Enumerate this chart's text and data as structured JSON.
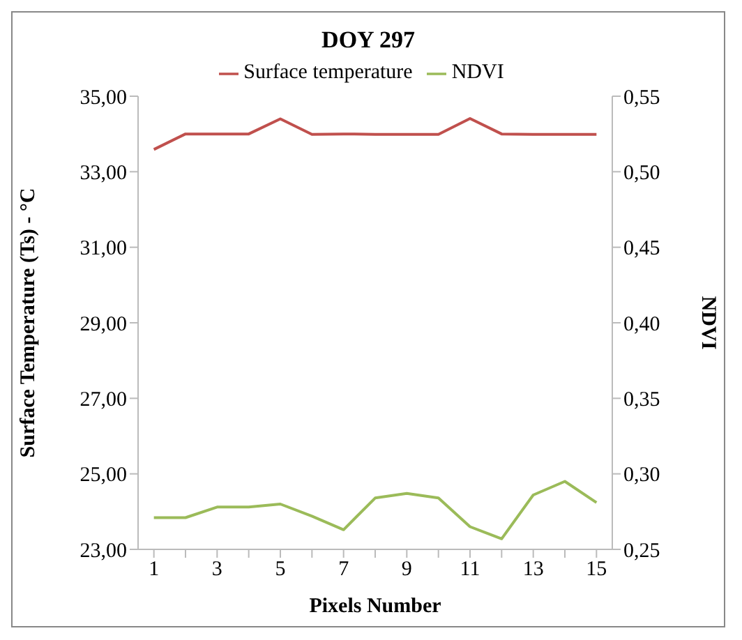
{
  "chart_data": {
    "type": "line",
    "title": "DOY 297",
    "xlabel": "Pixels Number",
    "ylabel": "Surface Temperature (Ts) - °C",
    "y2label": "NDVI",
    "x": [
      1,
      2,
      3,
      4,
      5,
      6,
      7,
      8,
      9,
      10,
      11,
      12,
      13,
      14,
      15
    ],
    "xlim": [
      0.5,
      15.5
    ],
    "xticks": [
      1,
      {
        "value": 2,
        "label": null
      },
      3,
      {
        "value": 4,
        "label": null
      },
      5,
      {
        "value": 6,
        "label": null
      },
      7,
      {
        "value": 8,
        "label": null
      },
      9,
      {
        "value": 10,
        "label": null
      },
      11,
      {
        "value": 12,
        "label": null
      },
      13,
      {
        "value": 14,
        "label": null
      },
      15
    ],
    "series": [
      {
        "name": "Surface temperature",
        "color": "#c0504d",
        "values": [
          33.59,
          34.0,
          34.0,
          34.0,
          34.4,
          33.99,
          34.0,
          33.99,
          33.99,
          33.99,
          34.41,
          34.0,
          33.99,
          33.99,
          33.99
        ]
      },
      {
        "name": "NDVI",
        "color": "#9bbb59",
        "axis": "y2",
        "values": [
          0.271,
          0.271,
          0.278,
          0.278,
          0.28,
          0.272,
          0.263,
          0.284,
          0.287,
          0.284,
          0.265,
          0.257,
          0.286,
          0.295,
          0.281
        ]
      }
    ],
    "ylim": [
      23,
      35
    ],
    "yticks": [
      {
        "value": 23,
        "label": "23,00"
      },
      {
        "value": 25,
        "label": "25,00"
      },
      {
        "value": 27,
        "label": "27,00"
      },
      {
        "value": 29,
        "label": "29,00"
      },
      {
        "value": 31,
        "label": "31,00"
      },
      {
        "value": 33,
        "label": "33,00"
      },
      {
        "value": 35,
        "label": "35,00"
      }
    ],
    "y2lim": [
      0.25,
      0.55
    ],
    "y2ticks": [
      {
        "value": 0.25,
        "label": "0,25"
      },
      {
        "value": 0.3,
        "label": "0,30"
      },
      {
        "value": 0.35,
        "label": "0,35"
      },
      {
        "value": 0.4,
        "label": "0,40"
      },
      {
        "value": 0.45,
        "label": "0,45"
      },
      {
        "value": 0.5,
        "label": "0,50"
      },
      {
        "value": 0.55,
        "label": "0,55"
      }
    ],
    "grid": false,
    "legend": "top",
    "marker": "none",
    "line_style": "solid"
  }
}
